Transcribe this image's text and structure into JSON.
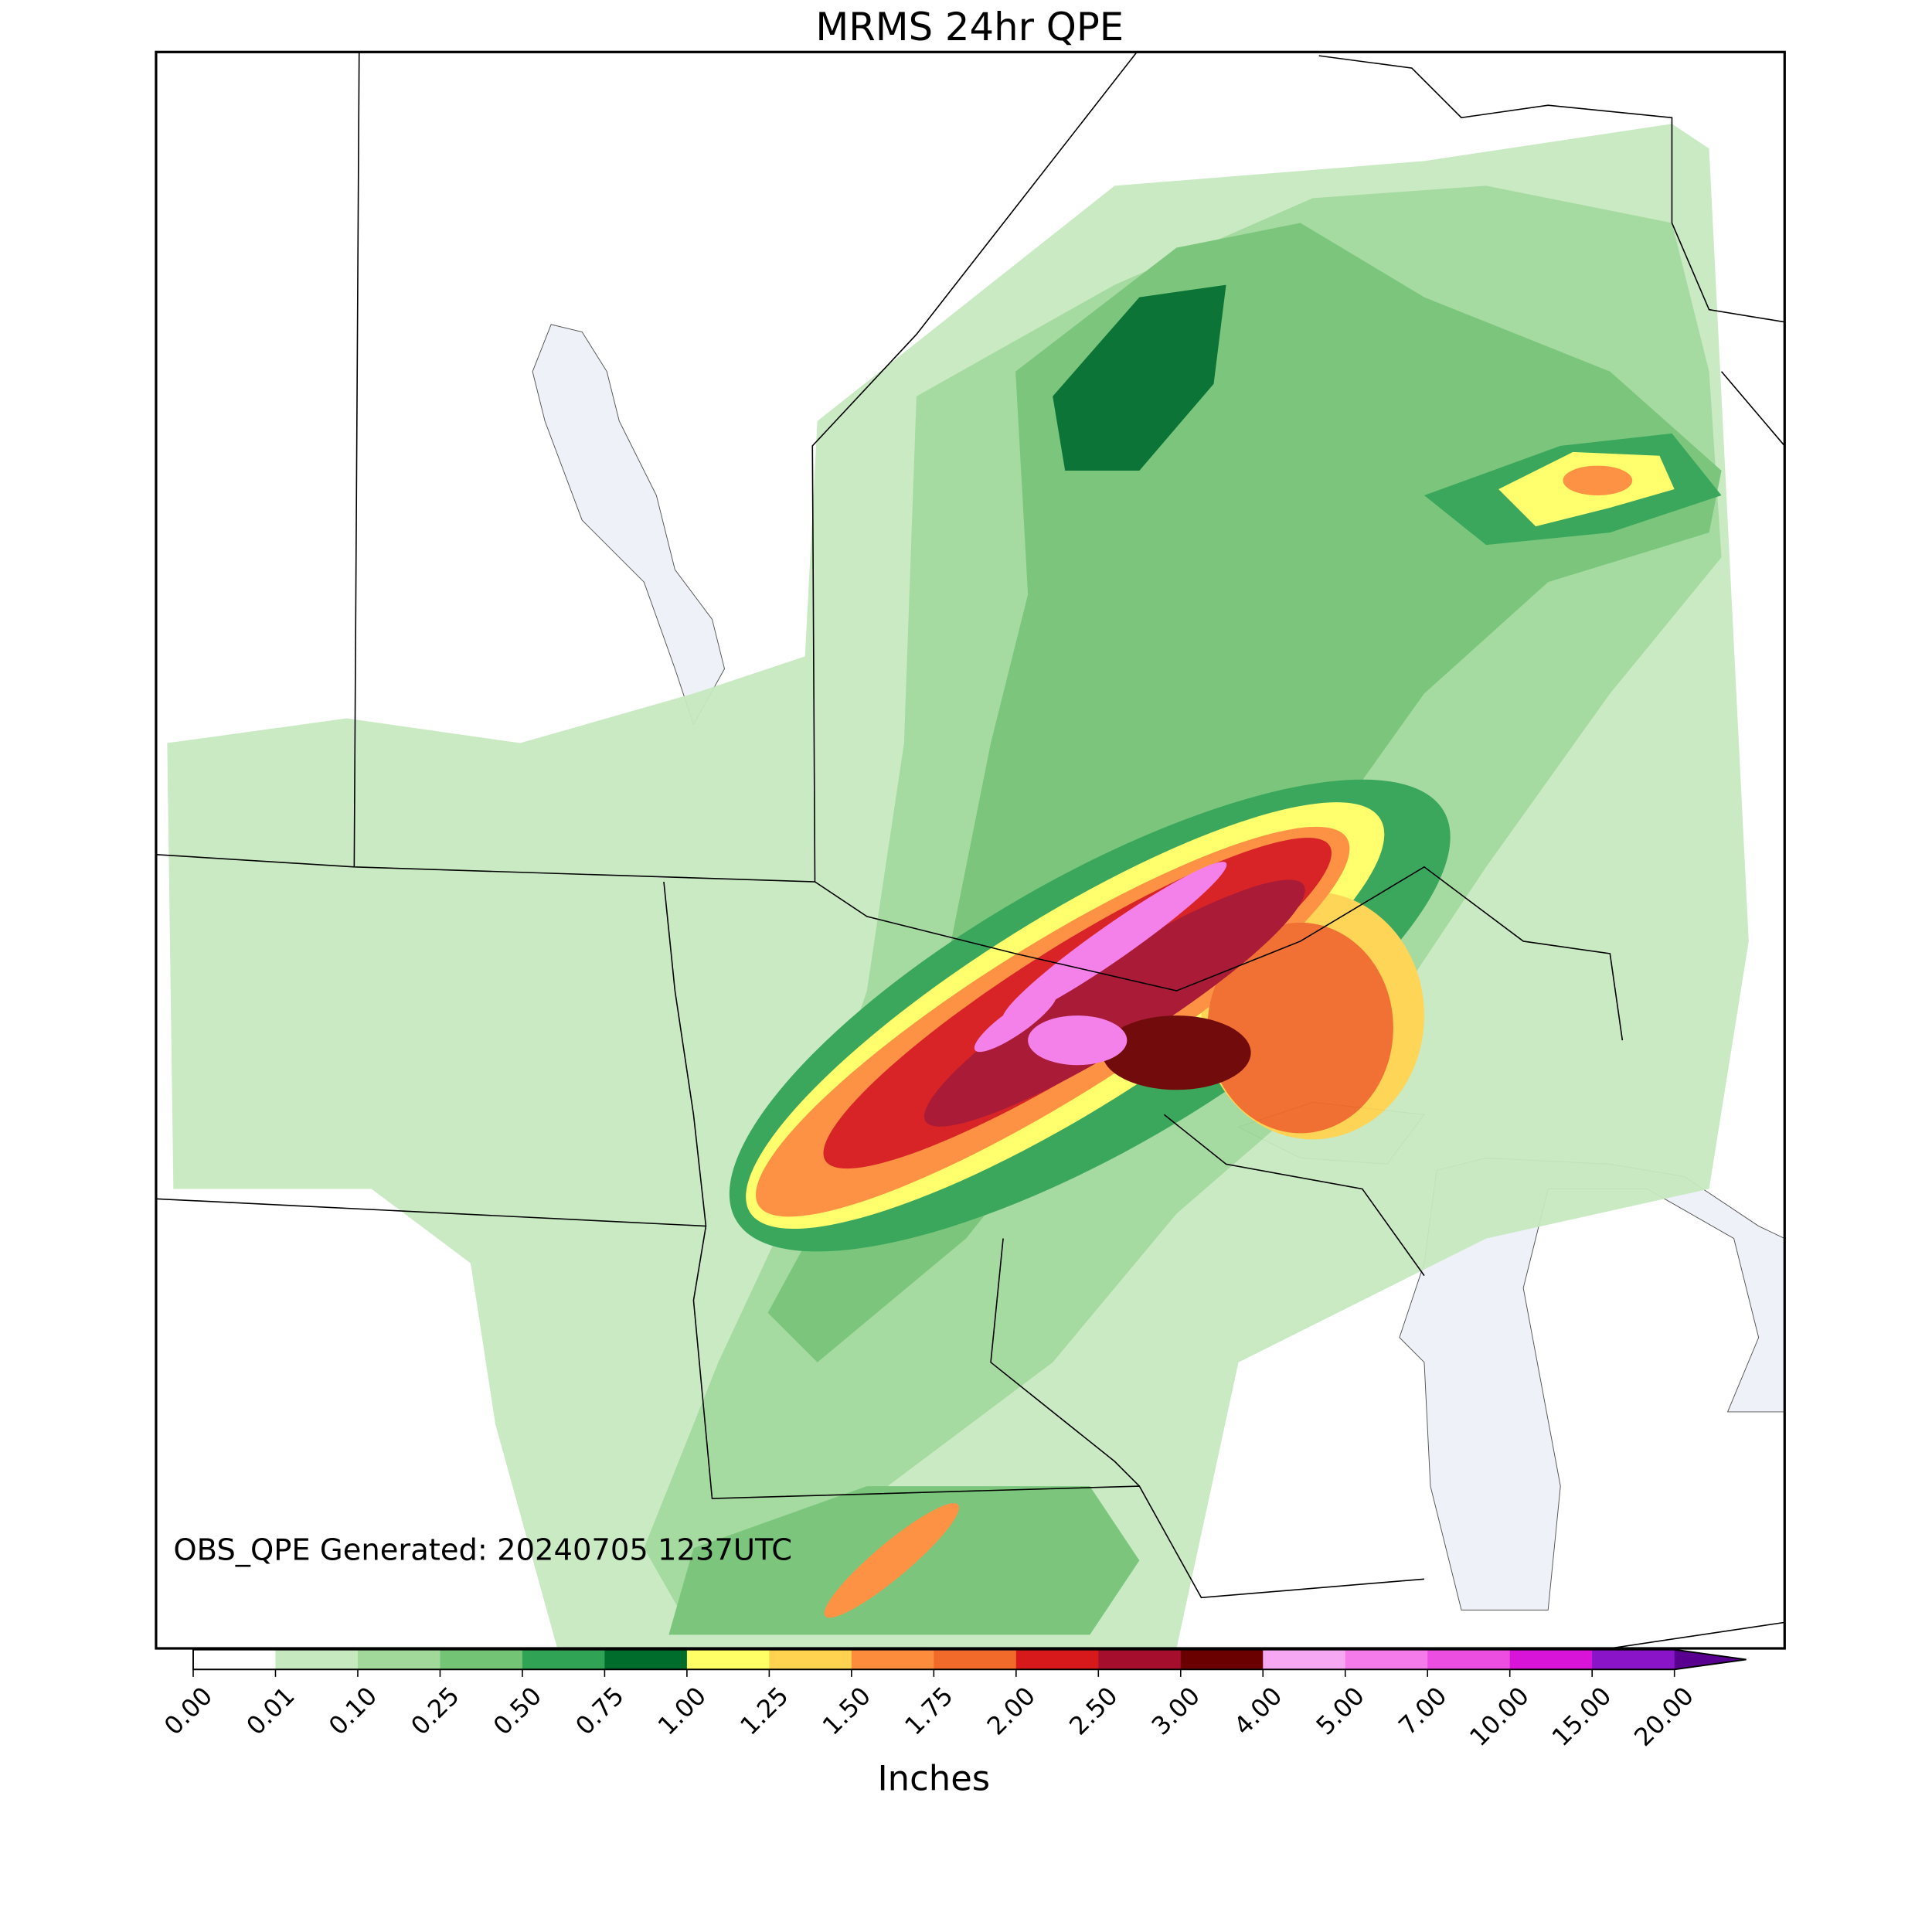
{
  "title": "MRMS 24hr QPE",
  "annotation": "OBS_QPE Generated: 20240705 1237UTC",
  "colorbar": {
    "label": "Inches",
    "ticks": [
      {
        "value": 0,
        "label": "0.00"
      },
      {
        "value": 0.01,
        "label": "0.01"
      },
      {
        "value": 0.1,
        "label": "0.10"
      },
      {
        "value": 0.25,
        "label": "0.25"
      },
      {
        "value": 0.5,
        "label": "0.50"
      },
      {
        "value": 0.75,
        "label": "0.75"
      },
      {
        "value": 1,
        "label": "1.00"
      },
      {
        "value": 1.25,
        "label": "1.25"
      },
      {
        "value": 1.5,
        "label": "1.50"
      },
      {
        "value": 1.75,
        "label": "1.75"
      },
      {
        "value": 2,
        "label": "2.00"
      },
      {
        "value": 2.5,
        "label": "2.50"
      },
      {
        "value": 3,
        "label": "3.00"
      },
      {
        "value": 4,
        "label": "4.00"
      },
      {
        "value": 5,
        "label": "5.00"
      },
      {
        "value": 7,
        "label": "7.00"
      },
      {
        "value": 10,
        "label": "10.00"
      },
      {
        "value": 15,
        "label": "15.00"
      },
      {
        "value": 20,
        "label": "20.00"
      }
    ],
    "colors": [
      "#ffffff",
      "#c7e9c0",
      "#a1d99b",
      "#74c476",
      "#31a354",
      "#006d2c",
      "#ffff66",
      "#ffd34f",
      "#fd8d3c",
      "#f16a2a",
      "#d7191c",
      "#a50f2d",
      "#6b0000",
      "#f7a8f2",
      "#f47be9",
      "#eb4ee0",
      "#d814d8",
      "#8a14c8"
    ],
    "extend_color": "#5a0090"
  }
}
